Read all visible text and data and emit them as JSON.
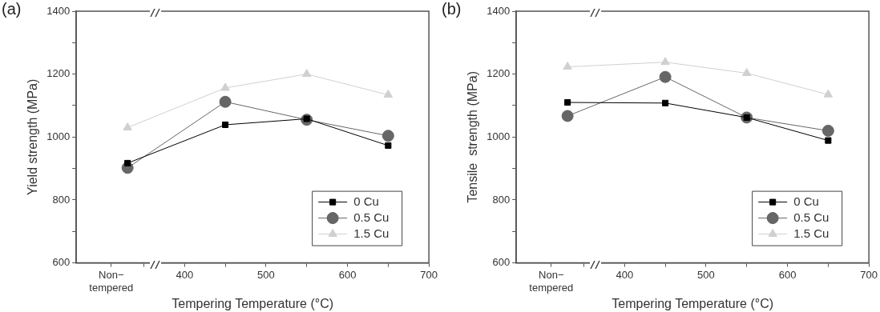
{
  "chart_data": [
    {
      "type": "line",
      "title": "(a)",
      "xlabel": "Tempering Temperature (°C)",
      "ylabel": "Yield strength (MPa)",
      "legend": "bottom right",
      "grid": false,
      "line_style": "solid",
      "xlim": [
        267,
        700
      ],
      "xticks": [
        {
          "value": 310,
          "label": "Non−tempered"
        },
        {
          "value": 350,
          "label": null
        },
        400,
        {
          "value": 450,
          "label": null
        },
        500,
        {
          "value": 550,
          "label": null
        },
        600,
        {
          "value": 650,
          "label": null
        },
        700
      ],
      "ylim": [
        600,
        1400
      ],
      "yticks": [
        600,
        {
          "value": 700,
          "label": null
        },
        800,
        {
          "value": 900,
          "label": null
        },
        1000,
        {
          "value": 1100,
          "label": null
        },
        1200,
        {
          "value": 1300,
          "label": null
        },
        1400
      ],
      "x": [
        330,
        450,
        550,
        650
      ],
      "series": [
        {
          "name": "0 Cu",
          "color": "#000000",
          "marker": "square",
          "values": [
            917,
            1039,
            1058,
            973
          ]
        },
        {
          "name": "0.5 Cu",
          "color": "#666666",
          "marker": "circle",
          "values": [
            902,
            1112,
            1055,
            1004
          ]
        },
        {
          "name": "1.5 Cu",
          "color": "#d0d0d0",
          "marker": "triangle",
          "values": [
            1030,
            1156,
            1200,
            1134
          ]
        }
      ]
    },
    {
      "type": "line",
      "title": "(b)",
      "xlabel": "Tempering Temperature (°C)",
      "ylabel": "Tensile  strength (MPa)",
      "legend": "bottom right",
      "grid": false,
      "line_style": "solid",
      "xlim": [
        267,
        700
      ],
      "xticks": [
        {
          "value": 310,
          "label": "Non−tempered"
        },
        {
          "value": 350,
          "label": null
        },
        400,
        {
          "value": 450,
          "label": null
        },
        500,
        {
          "value": 550,
          "label": null
        },
        600,
        {
          "value": 650,
          "label": null
        },
        700
      ],
      "ylim": [
        600,
        1400
      ],
      "yticks": [
        600,
        {
          "value": 700,
          "label": null
        },
        800,
        {
          "value": 900,
          "label": null
        },
        1000,
        {
          "value": 1100,
          "label": null
        },
        1200,
        {
          "value": 1300,
          "label": null
        },
        1400
      ],
      "x": [
        330,
        450,
        550,
        650
      ],
      "series": [
        {
          "name": "0 Cu",
          "color": "#000000",
          "marker": "square",
          "values": [
            1110,
            1108,
            1062,
            989
          ]
        },
        {
          "name": "0.5 Cu",
          "color": "#666666",
          "marker": "circle",
          "values": [
            1067,
            1191,
            1062,
            1020
          ]
        },
        {
          "name": "1.5 Cu",
          "color": "#d0d0d0",
          "marker": "triangle",
          "values": [
            1223,
            1238,
            1203,
            1135
          ]
        }
      ]
    }
  ]
}
